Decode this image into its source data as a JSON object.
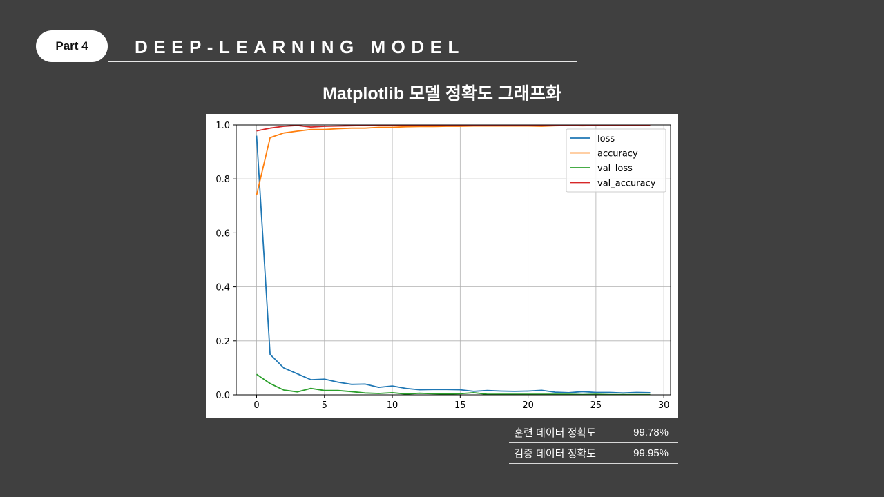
{
  "header": {
    "part_label": "Part 4",
    "title": "DEEP-LEARNING MODEL"
  },
  "chart_title": "Matplotlib 모델 정확도 그래프화",
  "stats": [
    {
      "label": "훈련 데이터 정확도",
      "value": "99.78%"
    },
    {
      "label": "검증 데이터 정확도",
      "value": "99.95%"
    }
  ],
  "colors": {
    "background": "#404040",
    "loss": "#1f77b4",
    "accuracy": "#ff7f0e",
    "val_loss": "#2ca02c",
    "val_accuracy": "#d62728"
  },
  "chart_data": {
    "type": "line",
    "title": "",
    "xlabel": "",
    "ylabel": "",
    "xlim": [
      -1.5,
      30.5
    ],
    "ylim": [
      0,
      1.0
    ],
    "xticks": [
      0,
      5,
      10,
      15,
      20,
      25,
      30
    ],
    "yticks": [
      0.0,
      0.2,
      0.4,
      0.6,
      0.8,
      1.0
    ],
    "ytick_labels": [
      "0.0",
      "0.2",
      "0.4",
      "0.6",
      "0.8",
      "1.0"
    ],
    "grid": true,
    "legend": "top-right",
    "x": [
      0,
      1,
      2,
      3,
      4,
      5,
      6,
      7,
      8,
      9,
      10,
      11,
      12,
      13,
      14,
      15,
      16,
      17,
      18,
      19,
      20,
      21,
      22,
      23,
      24,
      25,
      26,
      27,
      28,
      29
    ],
    "series": [
      {
        "name": "loss",
        "color": "#1f77b4",
        "values": [
          0.96,
          0.15,
          0.1,
          0.078,
          0.056,
          0.058,
          0.047,
          0.039,
          0.04,
          0.028,
          0.033,
          0.024,
          0.019,
          0.02,
          0.02,
          0.019,
          0.013,
          0.016,
          0.014,
          0.013,
          0.014,
          0.017,
          0.01,
          0.008,
          0.012,
          0.009,
          0.009,
          0.007,
          0.009,
          0.008
        ]
      },
      {
        "name": "accuracy",
        "color": "#ff7f0e",
        "values": [
          0.74,
          0.953,
          0.97,
          0.977,
          0.983,
          0.983,
          0.986,
          0.988,
          0.988,
          0.991,
          0.991,
          0.993,
          0.994,
          0.994,
          0.995,
          0.995,
          0.996,
          0.996,
          0.996,
          0.996,
          0.996,
          0.995,
          0.997,
          0.998,
          0.997,
          0.998,
          0.998,
          0.998,
          0.998,
          0.998
        ]
      },
      {
        "name": "val_loss",
        "color": "#2ca02c",
        "values": [
          0.076,
          0.042,
          0.018,
          0.011,
          0.024,
          0.016,
          0.016,
          0.012,
          0.007,
          0.005,
          0.008,
          0.003,
          0.006,
          0.004,
          0.003,
          0.004,
          0.008,
          0.002,
          0.002,
          0.002,
          0.002,
          0.002,
          0.002,
          0.002,
          0.001,
          0.002,
          0.001,
          0.001,
          0.001,
          0.001
        ]
      },
      {
        "name": "val_accuracy",
        "color": "#d62728",
        "values": [
          0.978,
          0.988,
          0.995,
          0.998,
          0.992,
          0.995,
          0.996,
          0.997,
          0.998,
          0.999,
          0.999,
          0.999,
          0.999,
          0.999,
          0.999,
          0.999,
          0.999,
          0.999,
          0.999,
          0.999,
          0.999,
          0.999,
          0.999,
          0.999,
          0.999,
          0.999,
          0.999,
          0.999,
          0.999,
          0.999
        ]
      }
    ]
  }
}
